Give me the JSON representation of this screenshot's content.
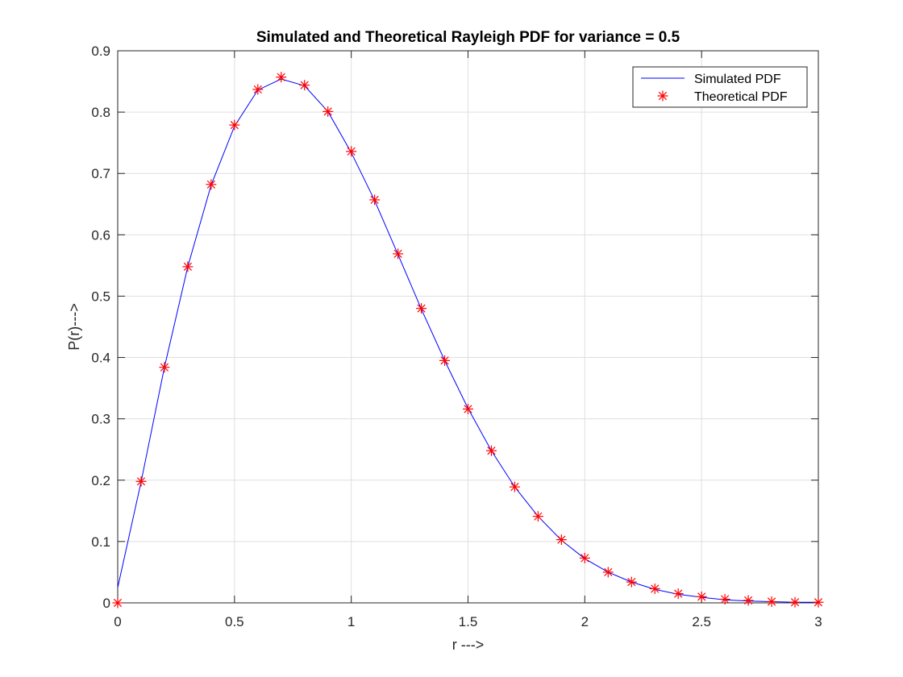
{
  "chart_data": {
    "type": "line",
    "title": "Simulated and Theoretical Rayleigh PDF for variance = 0.5",
    "xlabel": "r --->",
    "ylabel": "P(r)--->",
    "xlim": [
      0,
      3
    ],
    "ylim": [
      0,
      0.9
    ],
    "grid": true,
    "legend_position": "top-right",
    "x_ticks": [
      0,
      0.5,
      1,
      1.5,
      2,
      2.5,
      3
    ],
    "x_tick_labels": [
      "0",
      "0.5",
      "1",
      "1.5",
      "2",
      "2.5",
      "3"
    ],
    "y_ticks": [
      0,
      0.1,
      0.2,
      0.3,
      0.4,
      0.5,
      0.6,
      0.7,
      0.8,
      0.9
    ],
    "y_tick_labels": [
      "0",
      "0.1",
      "0.2",
      "0.3",
      "0.4",
      "0.5",
      "0.6",
      "0.7",
      "0.8",
      "0.9"
    ],
    "series": [
      {
        "name": "Simulated PDF",
        "style": "line",
        "color": "#0000ff",
        "x": [
          0,
          0.1,
          0.2,
          0.3,
          0.4,
          0.5,
          0.6,
          0.7,
          0.8,
          0.9,
          1.0,
          1.1,
          1.2,
          1.3,
          1.4,
          1.5,
          1.6,
          1.7,
          1.8,
          1.9,
          2.0,
          2.1,
          2.2,
          2.3,
          2.4,
          2.5,
          2.6,
          2.7,
          2.8,
          2.9,
          3.0
        ],
        "y": [
          0.025,
          0.197,
          0.384,
          0.548,
          0.681,
          0.777,
          0.836,
          0.854,
          0.843,
          0.801,
          0.734,
          0.656,
          0.568,
          0.479,
          0.395,
          0.317,
          0.248,
          0.189,
          0.141,
          0.102,
          0.072,
          0.05,
          0.034,
          0.022,
          0.014,
          0.009,
          0.005,
          0.003,
          0.002,
          0.001,
          0.001
        ]
      },
      {
        "name": "Theoretical PDF",
        "style": "marker",
        "marker": "asterisk",
        "color": "#ff0000",
        "x": [
          0,
          0.1,
          0.2,
          0.3,
          0.4,
          0.5,
          0.6,
          0.7,
          0.8,
          0.9,
          1.0,
          1.1,
          1.2,
          1.3,
          1.4,
          1.5,
          1.6,
          1.7,
          1.8,
          1.9,
          2.0,
          2.1,
          2.2,
          2.3,
          2.4,
          2.5,
          2.6,
          2.7,
          2.8,
          2.9,
          3.0
        ],
        "y": [
          0,
          0.198,
          0.384,
          0.548,
          0.682,
          0.779,
          0.837,
          0.857,
          0.844,
          0.801,
          0.736,
          0.657,
          0.569,
          0.48,
          0.395,
          0.316,
          0.248,
          0.189,
          0.141,
          0.103,
          0.073,
          0.05,
          0.034,
          0.023,
          0.015,
          0.01,
          0.006,
          0.004,
          0.002,
          0.001,
          0.001
        ]
      }
    ]
  }
}
